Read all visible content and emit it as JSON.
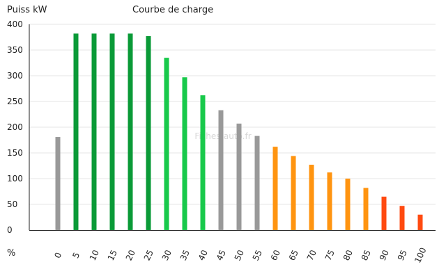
{
  "chart_data": {
    "type": "bar",
    "title": "Courbe de charge",
    "ylabel": "Puiss kW",
    "xlabel": "%",
    "watermark": "Fiches-auto.fr",
    "ylim": [
      0,
      400
    ],
    "yticks": [
      0,
      50,
      100,
      150,
      200,
      250,
      300,
      350,
      400
    ],
    "grid": true,
    "categories": [
      "0",
      "5",
      "10",
      "15",
      "20",
      "25",
      "30",
      "35",
      "40",
      "45",
      "50",
      "55",
      "60",
      "65",
      "70",
      "75",
      "80",
      "85",
      "90",
      "95",
      "100"
    ],
    "values": [
      181,
      382,
      382,
      382,
      382,
      377,
      335,
      297,
      262,
      233,
      207,
      183,
      162,
      144,
      127,
      112,
      100,
      82,
      65,
      47,
      30
    ],
    "colors": [
      "#999999",
      "#0a9a37",
      "#0a9a37",
      "#0a9a37",
      "#0a9a37",
      "#0a9a37",
      "#18c94b",
      "#18c94b",
      "#18c94b",
      "#999999",
      "#999999",
      "#999999",
      "#ff9410",
      "#ff9410",
      "#ff9410",
      "#ff9410",
      "#ff9410",
      "#ff9410",
      "#ff4a10",
      "#ff4a10",
      "#ff4a10"
    ]
  }
}
